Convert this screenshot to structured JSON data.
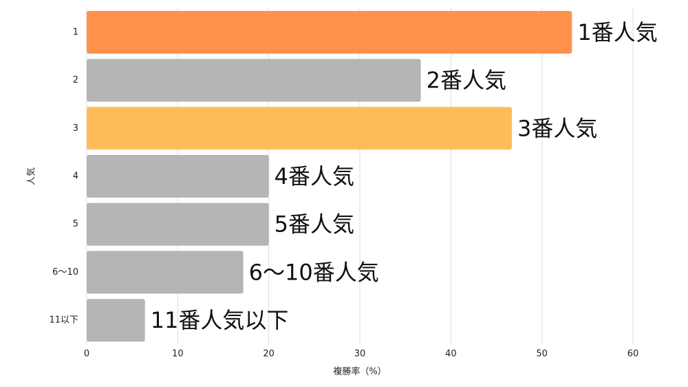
{
  "chart_data": {
    "type": "bar",
    "orientation": "horizontal",
    "categories": [
      "1",
      "2",
      "3",
      "4",
      "5",
      "6〜10",
      "11以下"
    ],
    "values": [
      53.3,
      36.7,
      46.7,
      20.0,
      20.0,
      17.2,
      6.4
    ],
    "labels": [
      "1番人気",
      "2番人気",
      "3番人気",
      "4番人気",
      "5番人気",
      "6〜10番人気",
      "11番人気以下"
    ],
    "colors": [
      "#ff914d",
      "#b5b5b5",
      "#ffbd59",
      "#b5b5b5",
      "#b5b5b5",
      "#b5b5b5",
      "#b5b5b5"
    ],
    "xlim": [
      0,
      60
    ],
    "xticks": [
      0,
      10,
      20,
      30,
      40,
      50,
      60
    ],
    "grid": true,
    "x_label": "複勝率（%）",
    "y_label": "人気"
  }
}
